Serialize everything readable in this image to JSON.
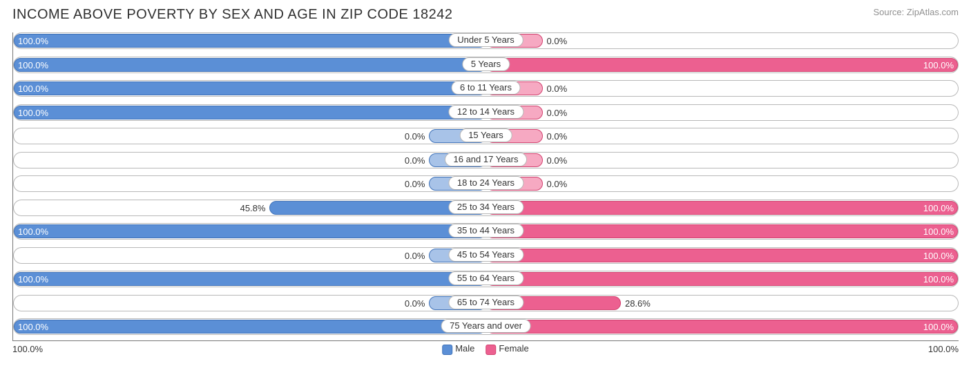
{
  "title": "INCOME ABOVE POVERTY BY SEX AND AGE IN ZIP CODE 18242",
  "source": "Source: ZipAtlas.com",
  "chart": {
    "type": "diverging-bar",
    "male_color": "#5b8fd6",
    "male_border": "#3f72b8",
    "female_color": "#ec6090",
    "female_border": "#d2416f",
    "zero_color": "#a8c3e8",
    "zero_color_f": "#f6a9c2",
    "track_border": "#b8b8b8",
    "track_bg": "#ffffff",
    "min_bar_pct": 12,
    "label_fontsize": 13,
    "title_fontsize": 20,
    "title_color": "#303030",
    "source_color": "#909090",
    "categories": [
      {
        "label": "Under 5 Years",
        "male": 100.0,
        "female": 0.0
      },
      {
        "label": "5 Years",
        "male": 100.0,
        "female": 100.0
      },
      {
        "label": "6 to 11 Years",
        "male": 100.0,
        "female": 0.0
      },
      {
        "label": "12 to 14 Years",
        "male": 100.0,
        "female": 0.0
      },
      {
        "label": "15 Years",
        "male": 0.0,
        "female": 0.0
      },
      {
        "label": "16 and 17 Years",
        "male": 0.0,
        "female": 0.0
      },
      {
        "label": "18 to 24 Years",
        "male": 0.0,
        "female": 0.0
      },
      {
        "label": "25 to 34 Years",
        "male": 45.8,
        "female": 100.0
      },
      {
        "label": "35 to 44 Years",
        "male": 100.0,
        "female": 100.0
      },
      {
        "label": "45 to 54 Years",
        "male": 0.0,
        "female": 100.0
      },
      {
        "label": "55 to 64 Years",
        "male": 100.0,
        "female": 100.0
      },
      {
        "label": "65 to 74 Years",
        "male": 0.0,
        "female": 28.6
      },
      {
        "label": "75 Years and over",
        "male": 100.0,
        "female": 100.0
      }
    ],
    "axis": {
      "left": "100.0%",
      "right": "100.0%"
    },
    "legend": {
      "male": "Male",
      "female": "Female"
    }
  }
}
